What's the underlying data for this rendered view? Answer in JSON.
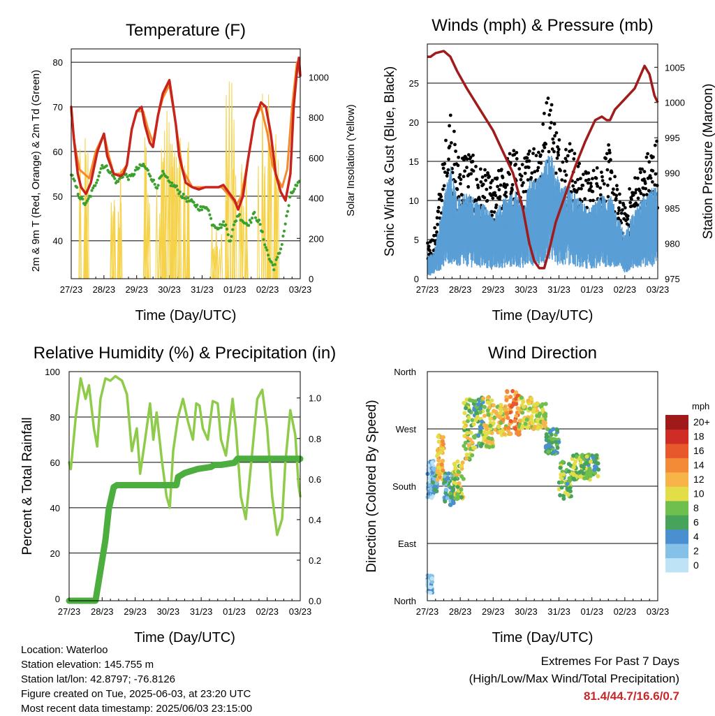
{
  "chart_data": [
    {
      "type": "line",
      "title": "Temperature (F)",
      "xlabel": "Time (Day/UTC)",
      "ylabel": "2m & 9m T (Red, Orange) & 2m Td (Green)",
      "y2label": "Solar Insolation (Yellow)",
      "x_ticks": [
        "27/23",
        "28/23",
        "29/23",
        "30/23",
        "31/23",
        "01/23",
        "02/23",
        "03/23"
      ],
      "xlim": [
        0,
        7
      ],
      "ylim": [
        31.5,
        83
      ],
      "yticks": [
        40,
        50,
        60,
        70,
        80
      ],
      "y2lim": [
        0,
        1140
      ],
      "y2ticks": [
        0,
        200,
        400,
        600,
        800,
        1000
      ],
      "grid": true,
      "series": [
        {
          "name": "2m T",
          "color": "#c8241c",
          "axis": "left",
          "width": 3.5,
          "x": [
            0,
            0.08,
            0.2,
            0.3,
            0.45,
            0.6,
            0.8,
            1.0,
            1.1,
            1.3,
            1.5,
            1.6,
            1.7,
            1.85,
            2.0,
            2.15,
            2.25,
            2.4,
            2.5,
            2.65,
            2.8,
            3.0,
            3.2,
            3.3,
            3.5,
            3.7,
            3.9,
            4.1,
            4.3,
            4.5,
            4.65,
            4.8,
            4.9,
            5.0,
            5.1,
            5.25,
            5.4,
            5.6,
            5.8,
            5.95,
            6.1,
            6.25,
            6.4,
            6.55,
            6.7,
            6.8,
            6.9,
            6.96,
            7.0
          ],
          "y": [
            70,
            63,
            55,
            52,
            50.5,
            53,
            60,
            64,
            59,
            55,
            54.5,
            55,
            57,
            65,
            69,
            70,
            66,
            62,
            61,
            68,
            73,
            76,
            66,
            59,
            53,
            52,
            51.5,
            52,
            52,
            52,
            52.5,
            51,
            50,
            49,
            47,
            50,
            58,
            67,
            71,
            70,
            64,
            55,
            51,
            49,
            55,
            70,
            78,
            81,
            77
          ]
        },
        {
          "name": "9m T",
          "color": "#f58a2c",
          "axis": "left",
          "width": 3,
          "x": [
            0,
            0.1,
            0.25,
            0.4,
            0.55,
            0.75,
            1.0,
            1.15,
            1.3,
            1.5,
            1.7,
            1.85,
            2.0,
            2.2,
            2.35,
            2.5,
            2.65,
            2.8,
            3.0,
            3.2,
            3.4,
            3.7,
            4.0,
            4.3,
            4.6,
            4.85,
            5.05,
            5.2,
            5.4,
            5.6,
            5.8,
            6.0,
            6.15,
            6.3,
            6.45,
            6.6,
            6.75,
            6.9,
            7.0
          ],
          "y": [
            69,
            62,
            56,
            55,
            54,
            60,
            64,
            59,
            55,
            55,
            57,
            65,
            69,
            69,
            65,
            62,
            68,
            72,
            75,
            66,
            56,
            52,
            52,
            52,
            52,
            50,
            48,
            50,
            58,
            67,
            70,
            64,
            57,
            54,
            52,
            56,
            70,
            80,
            77
          ]
        },
        {
          "name": "2m Td",
          "color": "#3aa02e",
          "axis": "left",
          "width": 4,
          "dotted": true,
          "x": [
            0,
            0.1,
            0.25,
            0.45,
            0.7,
            0.95,
            1.15,
            1.4,
            1.6,
            1.8,
            2.0,
            2.2,
            2.4,
            2.6,
            2.8,
            3.0,
            3.2,
            3.4,
            3.6,
            3.8,
            4.0,
            4.15,
            4.3,
            4.5,
            4.7,
            4.85,
            5.0,
            5.1,
            5.3,
            5.45,
            5.6,
            5.75,
            5.9,
            6.05,
            6.2,
            6.4,
            6.55,
            6.7,
            6.85,
            7.0
          ],
          "y": [
            55,
            53,
            50,
            48,
            52,
            57,
            56,
            53,
            55,
            54,
            56,
            57,
            55,
            52,
            55,
            53,
            52,
            50,
            49,
            48,
            47,
            48,
            44,
            43,
            44,
            40,
            44,
            46,
            44,
            44,
            46,
            44,
            40,
            36,
            34,
            38,
            44,
            50,
            52,
            53
          ]
        },
        {
          "name": "Solar Insolation",
          "color": "#f5d24a",
          "axis": "right",
          "width": 1,
          "type": "spikes",
          "peaks": [
            [
              0.35,
              700
            ],
            [
              1.33,
              600
            ],
            [
              2.25,
              730
            ],
            [
              2.75,
              650
            ],
            [
              2.9,
              860
            ],
            [
              3.2,
              700
            ],
            [
              3.5,
              720
            ],
            [
              4.4,
              280
            ],
            [
              4.85,
              990
            ],
            [
              5.25,
              650
            ],
            [
              5.85,
              960
            ],
            [
              6.15,
              720
            ]
          ]
        }
      ]
    },
    {
      "type": "scatter",
      "title": "Winds (mph) & Pressure (mb)",
      "xlabel": "Time (Day/UTC)",
      "ylabel": "Sonic Wind & Gust (Blue, Black)",
      "y2label": "Station Pressure (Maroon)",
      "x_ticks": [
        "27/23",
        "28/23",
        "29/23",
        "30/23",
        "31/23",
        "01/23",
        "02/23",
        "03/23"
      ],
      "xlim": [
        0,
        7
      ],
      "ylim": [
        0,
        30
      ],
      "yticks": [
        0,
        5,
        10,
        15,
        20,
        25
      ],
      "y2lim": [
        975,
        1008.3
      ],
      "y2ticks": [
        975,
        980,
        985,
        990,
        995,
        1000,
        1005
      ],
      "grid": true,
      "series": [
        {
          "name": "Wind",
          "color": "#5a9ed6",
          "envelope": [
            [
              0,
              2.5
            ],
            [
              0.2,
              3
            ],
            [
              0.5,
              9
            ],
            [
              0.7,
              13
            ],
            [
              0.9,
              9
            ],
            [
              1.2,
              10
            ],
            [
              1.5,
              9
            ],
            [
              1.8,
              8
            ],
            [
              2.0,
              7
            ],
            [
              2.3,
              9
            ],
            [
              2.6,
              10
            ],
            [
              2.9,
              9
            ],
            [
              3.1,
              11
            ],
            [
              3.3,
              11
            ],
            [
              3.5,
              12
            ],
            [
              3.7,
              15
            ],
            [
              3.9,
              12
            ],
            [
              4.1,
              10
            ],
            [
              4.3,
              11
            ],
            [
              4.6,
              9
            ],
            [
              4.9,
              8
            ],
            [
              5.2,
              9
            ],
            [
              5.5,
              10
            ],
            [
              5.8,
              7
            ],
            [
              6.0,
              5
            ],
            [
              6.2,
              7
            ],
            [
              6.5,
              9
            ],
            [
              6.8,
              10
            ],
            [
              7.0,
              11
            ]
          ]
        },
        {
          "name": "Gust",
          "color": "#000000",
          "envelope": [
            [
              0,
              4
            ],
            [
              0.2,
              5
            ],
            [
              0.5,
              14
            ],
            [
              0.7,
              20
            ],
            [
              0.9,
              14
            ],
            [
              1.2,
              15
            ],
            [
              1.5,
              13
            ],
            [
              1.8,
              12
            ],
            [
              2.0,
              11
            ],
            [
              2.3,
              13
            ],
            [
              2.6,
              15
            ],
            [
              2.9,
              13
            ],
            [
              3.1,
              15
            ],
            [
              3.3,
              16
            ],
            [
              3.5,
              18
            ],
            [
              3.7,
              22
            ],
            [
              3.9,
              18
            ],
            [
              4.1,
              15
            ],
            [
              4.3,
              16
            ],
            [
              4.6,
              13
            ],
            [
              4.9,
              12
            ],
            [
              5.2,
              13
            ],
            [
              5.5,
              15
            ],
            [
              5.8,
              10
            ],
            [
              6.0,
              8
            ],
            [
              6.2,
              11
            ],
            [
              6.5,
              13
            ],
            [
              6.8,
              15
            ],
            [
              7.0,
              16
            ]
          ]
        },
        {
          "name": "Station Pressure",
          "color": "#a01c1c",
          "axis": "right",
          "width": 3.5,
          "x": [
            0,
            0.1,
            0.25,
            0.5,
            0.7,
            0.9,
            1.2,
            1.6,
            2.0,
            2.3,
            2.6,
            2.9,
            3.1,
            3.25,
            3.4,
            3.55,
            3.7,
            3.9,
            4.2,
            4.5,
            4.8,
            5.1,
            5.3,
            5.45,
            5.55,
            5.7,
            6.0,
            6.3,
            6.6,
            6.75,
            6.9,
            7.0
          ],
          "y": [
            1006.5,
            1006.5,
            1007,
            1007.3,
            1006.5,
            1004.5,
            1002,
            999,
            996,
            993,
            990,
            985,
            980,
            977.5,
            976.5,
            976.5,
            979,
            983,
            987,
            991,
            994.5,
            997.5,
            998,
            997.5,
            997.5,
            999,
            1000.5,
            1002,
            1005.2,
            1004,
            1001,
            1000
          ]
        }
      ]
    },
    {
      "type": "line",
      "title": "Relative Humidity (%) & Precipitation (in)",
      "xlabel": "Time (Day/UTC)",
      "ylabel": "Percent & Total Rainfall",
      "x_ticks": [
        "27/23",
        "28/23",
        "29/23",
        "30/23",
        "31/23",
        "01/23",
        "02/23",
        "03/23"
      ],
      "xlim": [
        0,
        7
      ],
      "ylim": [
        -1,
        100
      ],
      "yticks": [
        0,
        20,
        40,
        60,
        80,
        100
      ],
      "y2lim": [
        0,
        1.13
      ],
      "y2ticks": [
        "0.0",
        "0.2",
        "0.4",
        "0.6",
        "0.8",
        "1.0"
      ],
      "grid": true,
      "series": [
        {
          "name": "Relative Humidity",
          "color": "#8fcb4a",
          "axis": "left",
          "width": 3.5,
          "x": [
            0,
            0.05,
            0.2,
            0.35,
            0.5,
            0.6,
            0.75,
            0.85,
            0.95,
            1.1,
            1.25,
            1.4,
            1.6,
            1.75,
            1.9,
            2.05,
            2.15,
            2.3,
            2.45,
            2.55,
            2.65,
            2.8,
            2.95,
            3.05,
            3.15,
            3.3,
            3.45,
            3.6,
            3.75,
            3.85,
            3.95,
            4.05,
            4.2,
            4.35,
            4.5,
            4.6,
            4.75,
            4.85,
            4.95,
            5.05,
            5.2,
            5.35,
            5.55,
            5.7,
            5.85,
            6.0,
            6.15,
            6.3,
            6.45,
            6.55,
            6.7,
            6.85,
            6.95,
            7.0
          ],
          "y": [
            60,
            57,
            80,
            97,
            88,
            94,
            75,
            67,
            88,
            97,
            96,
            98,
            96,
            90,
            65,
            75,
            55,
            70,
            86,
            70,
            82,
            62,
            45,
            40,
            65,
            80,
            88,
            78,
            70,
            86,
            85,
            75,
            70,
            87,
            86,
            70,
            63,
            75,
            88,
            75,
            45,
            35,
            65,
            88,
            92,
            75,
            45,
            28,
            35,
            60,
            83,
            72,
            50,
            45
          ]
        },
        {
          "name": "Total Precipitation",
          "color": "#4cae3e",
          "axis": "right",
          "width": 9,
          "x": [
            0,
            0.6,
            0.8,
            0.9,
            1.0,
            1.1,
            1.2,
            1.35,
            1.45,
            1.55,
            1.6,
            1.7,
            2.0,
            2.4,
            2.8,
            3.1,
            3.25,
            3.3,
            3.5,
            3.9,
            4.3,
            4.4,
            4.6,
            5.0,
            5.1,
            5.5,
            6.0,
            6.5,
            7.0
          ],
          "y": [
            0,
            0,
            0,
            0.1,
            0.2,
            0.3,
            0.45,
            0.56,
            0.57,
            0.57,
            0.57,
            0.57,
            0.57,
            0.57,
            0.57,
            0.57,
            0.57,
            0.61,
            0.63,
            0.65,
            0.66,
            0.67,
            0.67,
            0.68,
            0.7,
            0.7,
            0.7,
            0.7,
            0.7
          ]
        }
      ]
    },
    {
      "type": "scatter",
      "title": "Wind Direction",
      "xlabel": "Time (Day/UTC)",
      "ylabel": "Direction (Colored By Speed)",
      "x_ticks": [
        "27/23",
        "28/23",
        "29/23",
        "30/23",
        "31/23",
        "01/23",
        "02/23",
        "03/23"
      ],
      "xlim": [
        0,
        7
      ],
      "y_ticks": [
        "North",
        "East",
        "South",
        "West",
        "North"
      ],
      "ylim": [
        0,
        360
      ],
      "grid": true,
      "colorbar": {
        "title": "mph",
        "labels": [
          "0",
          "2",
          "4",
          "6",
          "8",
          "10",
          "12",
          "14",
          "16",
          "18",
          "20+"
        ],
        "colors": [
          "#bfe3f6",
          "#85c0e8",
          "#4a8fcf",
          "#47a35a",
          "#6fbf4e",
          "#e3dd48",
          "#f7b448",
          "#f28a36",
          "#e8582c",
          "#cf2c25",
          "#a11a1a"
        ]
      },
      "clusters": [
        [
          0,
          0.15,
          10,
          40,
          1
        ],
        [
          0,
          0.2,
          160,
          220,
          1
        ],
        [
          0.15,
          0.3,
          170,
          210,
          4
        ],
        [
          0.3,
          0.5,
          190,
          260,
          12
        ],
        [
          0.5,
          0.8,
          150,
          200,
          5
        ],
        [
          0.8,
          1.1,
          160,
          220,
          9
        ],
        [
          1.1,
          1.4,
          220,
          320,
          9
        ],
        [
          1.4,
          1.7,
          240,
          320,
          7
        ],
        [
          1.7,
          2.0,
          240,
          320,
          10
        ],
        [
          2.0,
          2.4,
          260,
          310,
          11
        ],
        [
          2.4,
          2.8,
          260,
          330,
          14
        ],
        [
          2.8,
          3.2,
          270,
          320,
          10
        ],
        [
          3.2,
          3.6,
          270,
          310,
          10
        ],
        [
          3.6,
          4.0,
          230,
          270,
          6
        ],
        [
          4.0,
          4.4,
          160,
          220,
          7
        ],
        [
          4.4,
          4.8,
          190,
          230,
          8
        ],
        [
          4.8,
          5.2,
          190,
          230,
          7
        ]
      ]
    }
  ],
  "info": {
    "location": "Location: Waterloo",
    "elevation": "Station elevation: 145.755 m",
    "latlon": "Station lat/lon: 42.8797; -76.8126",
    "created": "Figure created on Tue, 2025-06-03, at 23:20 UTC",
    "timestamp": "Most recent data timestamp: 2025/06/03 23:15:00"
  },
  "extremes": {
    "title": "Extremes For Past 7 Days",
    "subtitle": "(High/Low/Max Wind/Total Precipitation)",
    "values": "81.4/44.7/16.6/0.7"
  }
}
